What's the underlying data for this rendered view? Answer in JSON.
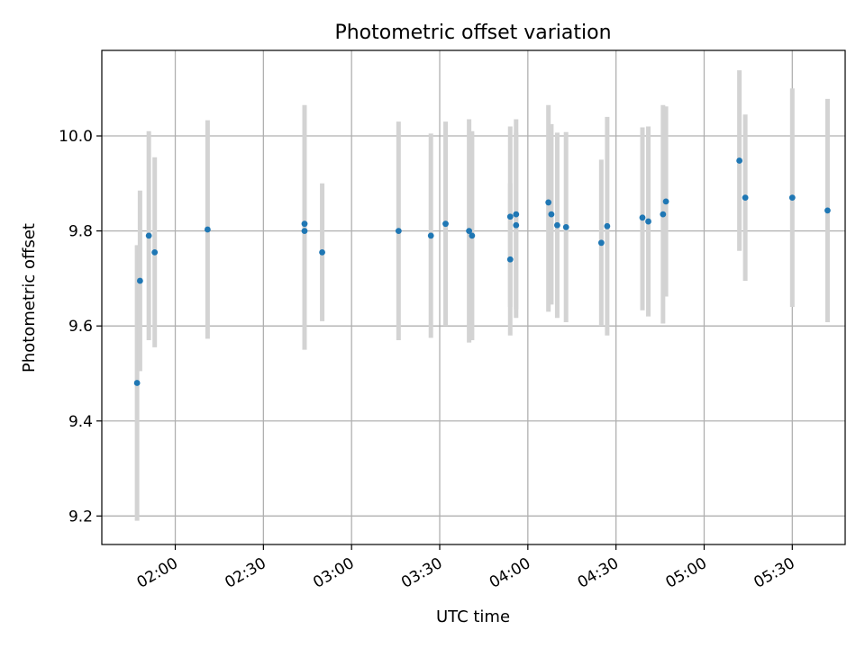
{
  "chart_data": {
    "type": "scatter",
    "title": "Photometric offset variation",
    "xlabel": "UTC time",
    "ylabel": "Photometric offset",
    "x_unit": "time (HH:MM UTC)",
    "xlim": [
      "01:35",
      "05:48"
    ],
    "ylim": [
      9.14,
      10.18
    ],
    "x_ticks": [
      "02:00",
      "02:30",
      "03:00",
      "03:30",
      "04:00",
      "04:30",
      "05:00",
      "05:30"
    ],
    "y_ticks": [
      9.2,
      9.4,
      9.6,
      9.8,
      10.0
    ],
    "y_tick_labels": [
      "9.2",
      "9.4",
      "9.6",
      "9.8",
      "10.0"
    ],
    "grid": true,
    "point_color": "#1f77b4",
    "errorbar_color": "#d3d3d3",
    "points": [
      {
        "t": "01:47",
        "y": 9.48,
        "lo": 9.19,
        "hi": 9.77
      },
      {
        "t": "01:48",
        "y": 9.695,
        "lo": 9.505,
        "hi": 9.885
      },
      {
        "t": "01:51",
        "y": 9.79,
        "lo": 9.57,
        "hi": 10.01
      },
      {
        "t": "01:53",
        "y": 9.755,
        "lo": 9.555,
        "hi": 9.955
      },
      {
        "t": "02:11",
        "y": 9.803,
        "lo": 9.573,
        "hi": 10.033
      },
      {
        "t": "02:44",
        "y": 9.815,
        "lo": 9.565,
        "hi": 10.065
      },
      {
        "t": "02:44",
        "y": 9.8,
        "lo": 9.55,
        "hi": 10.05
      },
      {
        "t": "02:50",
        "y": 9.755,
        "lo": 9.61,
        "hi": 9.9
      },
      {
        "t": "03:16",
        "y": 9.8,
        "lo": 9.57,
        "hi": 10.03
      },
      {
        "t": "03:27",
        "y": 9.79,
        "lo": 9.575,
        "hi": 10.005
      },
      {
        "t": "03:32",
        "y": 9.815,
        "lo": 9.6,
        "hi": 10.03
      },
      {
        "t": "03:40",
        "y": 9.8,
        "lo": 9.565,
        "hi": 10.035
      },
      {
        "t": "03:41",
        "y": 9.79,
        "lo": 9.57,
        "hi": 10.01
      },
      {
        "t": "03:54",
        "y": 9.74,
        "lo": 9.58,
        "hi": 9.9
      },
      {
        "t": "03:54",
        "y": 9.83,
        "lo": 9.64,
        "hi": 10.02
      },
      {
        "t": "03:56",
        "y": 9.835,
        "lo": 9.635,
        "hi": 10.035
      },
      {
        "t": "03:56",
        "y": 9.812,
        "lo": 9.617,
        "hi": 10.007
      },
      {
        "t": "04:07",
        "y": 9.86,
        "lo": 9.63,
        "hi": 10.065
      },
      {
        "t": "04:08",
        "y": 9.835,
        "lo": 9.645,
        "hi": 10.025
      },
      {
        "t": "04:10",
        "y": 9.812,
        "lo": 9.617,
        "hi": 10.007
      },
      {
        "t": "04:13",
        "y": 9.808,
        "lo": 9.608,
        "hi": 10.008
      },
      {
        "t": "04:25",
        "y": 9.775,
        "lo": 9.6,
        "hi": 9.95
      },
      {
        "t": "04:27",
        "y": 9.81,
        "lo": 9.58,
        "hi": 10.04
      },
      {
        "t": "04:39",
        "y": 9.828,
        "lo": 9.633,
        "hi": 10.018
      },
      {
        "t": "04:41",
        "y": 9.82,
        "lo": 9.62,
        "hi": 10.02
      },
      {
        "t": "04:46",
        "y": 9.835,
        "lo": 9.605,
        "hi": 10.065
      },
      {
        "t": "04:47",
        "y": 9.862,
        "lo": 9.662,
        "hi": 10.062
      },
      {
        "t": "05:12",
        "y": 9.948,
        "lo": 9.758,
        "hi": 10.138
      },
      {
        "t": "05:14",
        "y": 9.87,
        "lo": 9.695,
        "hi": 10.045
      },
      {
        "t": "05:30",
        "y": 9.87,
        "lo": 9.64,
        "hi": 10.1
      },
      {
        "t": "05:42",
        "y": 9.843,
        "lo": 9.608,
        "hi": 10.078
      }
    ]
  }
}
